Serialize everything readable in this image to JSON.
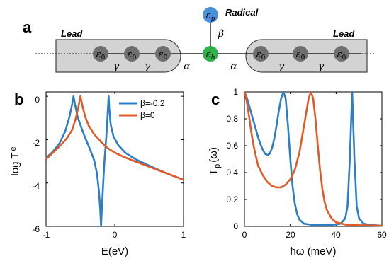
{
  "panel_labels": {
    "a": "a",
    "b": "b",
    "c": "c"
  },
  "schematic": {
    "lead_left_label": "Lead",
    "lead_right_label": "Lead",
    "radical_label": "Radical",
    "site_symbol": "ε",
    "site_subscript": "0",
    "bridge_symbol": "ε",
    "bridge_subscript": "b",
    "radical_symbol": "ε",
    "radical_subscript": "p",
    "gamma": "γ",
    "alpha": "α",
    "beta": "β"
  },
  "colors": {
    "blue": "#2E7EC6",
    "orange": "#E05A28",
    "grey_site": "#6F6F6F",
    "lead_fill": "#D3D3D3",
    "green": "#2DB24A"
  },
  "chart_data": [
    {
      "type": "line",
      "panel": "b",
      "xlabel": "E(eV)",
      "ylabel_main": "log T",
      "ylabel_sub": "e",
      "xlim": [
        -1,
        1
      ],
      "ylim": [
        -6,
        0.2
      ],
      "xticks": [
        "-1",
        "0",
        "1"
      ],
      "yticks": [
        "0",
        "-2",
        "-4",
        "-6"
      ],
      "legend": {
        "placement": "top-right",
        "entries": [
          "β=-0.2",
          "β=0"
        ]
      },
      "series": [
        {
          "name": "β=-0.2",
          "color": "#2E7EC6",
          "points": [
            [
              -1,
              -2.85
            ],
            [
              -0.9,
              -2.55
            ],
            [
              -0.8,
              -2.15
            ],
            [
              -0.72,
              -1.6
            ],
            [
              -0.66,
              -0.95
            ],
            [
              -0.62,
              -0.35
            ],
            [
              -0.6,
              0
            ],
            [
              -0.58,
              -0.35
            ],
            [
              -0.54,
              -0.95
            ],
            [
              -0.48,
              -1.5
            ],
            [
              -0.42,
              -2.0
            ],
            [
              -0.36,
              -2.45
            ],
            [
              -0.3,
              -2.95
            ],
            [
              -0.26,
              -3.55
            ],
            [
              -0.23,
              -4.4
            ],
            [
              -0.21,
              -5.3
            ],
            [
              -0.2,
              -6
            ],
            [
              -0.19,
              -5.3
            ],
            [
              -0.17,
              -4.1
            ],
            [
              -0.15,
              -3.0
            ],
            [
              -0.12,
              -1.7
            ],
            [
              -0.1,
              -0.6
            ],
            [
              -0.09,
              0
            ],
            [
              -0.08,
              -0.55
            ],
            [
              -0.06,
              -1.3
            ],
            [
              -0.02,
              -1.85
            ],
            [
              0.05,
              -2.25
            ],
            [
              0.15,
              -2.6
            ],
            [
              0.3,
              -2.9
            ],
            [
              0.5,
              -3.2
            ],
            [
              0.75,
              -3.55
            ],
            [
              1,
              -3.85
            ]
          ]
        },
        {
          "name": "β=0",
          "color": "#E05A28",
          "points": [
            [
              -1,
              -2.9
            ],
            [
              -0.9,
              -2.6
            ],
            [
              -0.8,
              -2.3
            ],
            [
              -0.7,
              -1.95
            ],
            [
              -0.62,
              -1.55
            ],
            [
              -0.57,
              -1.05
            ],
            [
              -0.53,
              -0.5
            ],
            [
              -0.5,
              0
            ],
            [
              -0.47,
              -0.45
            ],
            [
              -0.43,
              -0.95
            ],
            [
              -0.38,
              -1.35
            ],
            [
              -0.3,
              -1.75
            ],
            [
              -0.2,
              -2.1
            ],
            [
              -0.1,
              -2.4
            ],
            [
              0,
              -2.6
            ],
            [
              0.1,
              -2.75
            ],
            [
              0.25,
              -2.95
            ],
            [
              0.5,
              -3.25
            ],
            [
              0.75,
              -3.55
            ],
            [
              1,
              -3.85
            ]
          ]
        }
      ]
    },
    {
      "type": "line",
      "panel": "c",
      "xlabel": "ħω (meV)",
      "ylabel_main": "T",
      "ylabel_sub": "p",
      "ylabel_tail": "(ω)",
      "xlim": [
        0,
        60
      ],
      "ylim": [
        0,
        1
      ],
      "xticks": [
        "0",
        "20",
        "40",
        "60"
      ],
      "yticks": [
        "0",
        "0.2",
        "0.4",
        "0.6",
        "0.8",
        "1"
      ],
      "series": [
        {
          "name": "",
          "color": "#2E7EC6",
          "points": [
            [
              0,
              1
            ],
            [
              1,
              0.96
            ],
            [
              2,
              0.9
            ],
            [
              3,
              0.84
            ],
            [
              4,
              0.78
            ],
            [
              5,
              0.72
            ],
            [
              6,
              0.66
            ],
            [
              7,
              0.61
            ],
            [
              8,
              0.57
            ],
            [
              9,
              0.54
            ],
            [
              10,
              0.53
            ],
            [
              11,
              0.54
            ],
            [
              12,
              0.58
            ],
            [
              13,
              0.65
            ],
            [
              14,
              0.75
            ],
            [
              15,
              0.86
            ],
            [
              16,
              0.95
            ],
            [
              17,
              1
            ],
            [
              18,
              0.95
            ],
            [
              19,
              0.75
            ],
            [
              20,
              0.5
            ],
            [
              21,
              0.3
            ],
            [
              22,
              0.17
            ],
            [
              23,
              0.09
            ],
            [
              24,
              0.05
            ],
            [
              26,
              0.02
            ],
            [
              30,
              0.01
            ],
            [
              38,
              0.01
            ],
            [
              42,
              0.02
            ],
            [
              44,
              0.06
            ],
            [
              45,
              0.15
            ],
            [
              46,
              0.5
            ],
            [
              47,
              1
            ],
            [
              48,
              0.5
            ],
            [
              49,
              0.15
            ],
            [
              50,
              0.06
            ],
            [
              52,
              0.02
            ],
            [
              55,
              0.01
            ],
            [
              60,
              0.005
            ]
          ]
        },
        {
          "name": "",
          "color": "#E05A28",
          "points": [
            [
              0,
              1
            ],
            [
              1,
              0.93
            ],
            [
              2,
              0.82
            ],
            [
              3,
              0.7
            ],
            [
              4,
              0.6
            ],
            [
              5,
              0.52
            ],
            [
              6,
              0.45
            ],
            [
              8,
              0.38
            ],
            [
              10,
              0.33
            ],
            [
              12,
              0.3
            ],
            [
              14,
              0.29
            ],
            [
              16,
              0.29
            ],
            [
              18,
              0.31
            ],
            [
              20,
              0.35
            ],
            [
              22,
              0.42
            ],
            [
              24,
              0.55
            ],
            [
              26,
              0.75
            ],
            [
              28,
              0.95
            ],
            [
              29,
              1
            ],
            [
              30,
              0.95
            ],
            [
              31,
              0.8
            ],
            [
              32,
              0.6
            ],
            [
              33,
              0.42
            ],
            [
              34,
              0.28
            ],
            [
              35,
              0.18
            ],
            [
              36,
              0.12
            ],
            [
              38,
              0.06
            ],
            [
              40,
              0.03
            ],
            [
              45,
              0.01
            ],
            [
              60,
              0.005
            ]
          ]
        }
      ]
    }
  ]
}
